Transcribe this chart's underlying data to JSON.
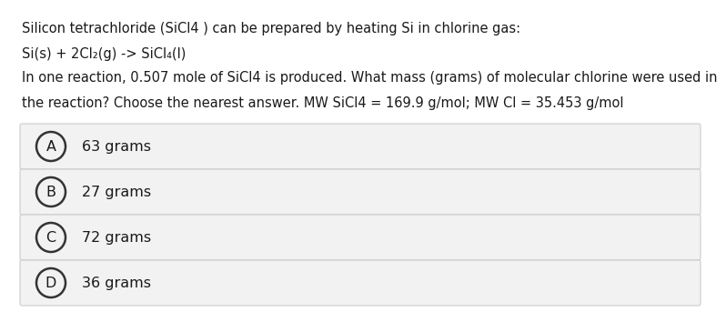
{
  "title_line1": "Silicon tetrachloride (SiCl4 ) can be prepared by heating Si in chlorine gas:",
  "title_line2": "Si(s) + 2Cl₂(g) -> SiCl₄(l)",
  "title_line3": "In one reaction, 0.507 mole of SiCl4 is produced. What mass (grams) of molecular chlorine were used in",
  "title_line4": "the reaction? Choose the nearest answer. MW SiCl4 = 169.9 g/mol; MW Cl = 35.453 g/mol",
  "options": [
    {
      "letter": "A",
      "text": "63 grams"
    },
    {
      "letter": "B",
      "text": "27 grams"
    },
    {
      "letter": "C",
      "text": "72 grams"
    },
    {
      "letter": "D",
      "text": "36 grams"
    }
  ],
  "bg_color": "#ffffff",
  "option_bg_color": "#f2f2f2",
  "option_border_color": "#cccccc",
  "text_color": "#1a1a1a",
  "circle_color": "#333333",
  "font_size_body": 10.5,
  "font_size_option": 11.5,
  "font_size_letter": 11.5
}
